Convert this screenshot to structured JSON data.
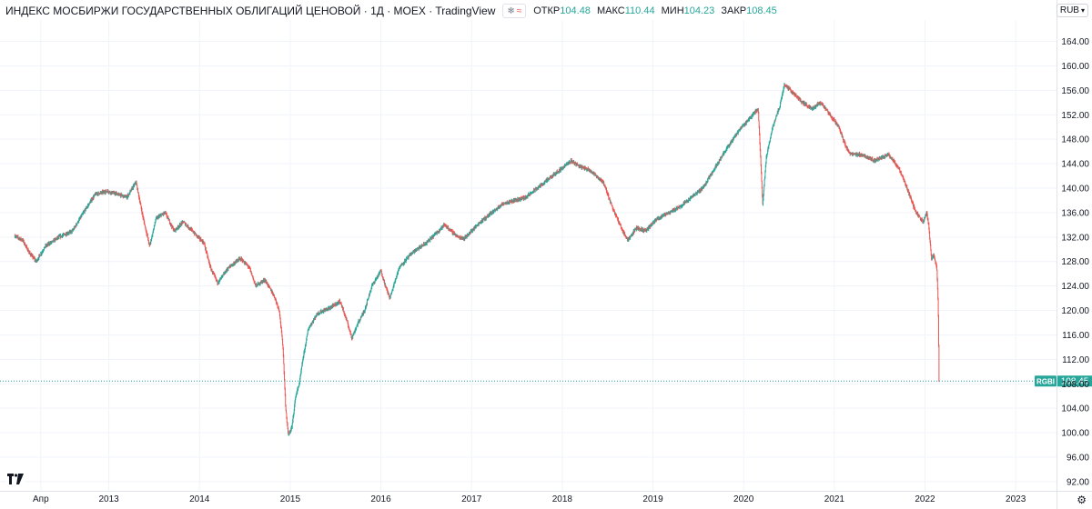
{
  "header": {
    "title": "ИНДЕКС МОСБИРЖИ ГОСУДАРСТВЕННЫХ ОБЛИГАЦИЙ ЦЕНОВОЙ · 1Д · MOEX · TradingView",
    "ohlc": [
      {
        "label": "ОТКР",
        "value": "104.48"
      },
      {
        "label": "МАКС",
        "value": "110.44"
      },
      {
        "label": "МИН",
        "value": "104.23"
      },
      {
        "label": "ЗАКР",
        "value": "108.45"
      }
    ]
  },
  "currency": "RUB",
  "colors": {
    "up": "#26a69a",
    "down": "#ef5350",
    "grid": "#f0f3fa",
    "price_line": "#26a69a"
  },
  "chart_data": {
    "type": "candlestick",
    "symbol": "RGBI",
    "last_price": 108.45,
    "ylim": [
      90.5,
      167.5
    ],
    "y_ticks": [
      "92.00",
      "96.00",
      "100.00",
      "104.00",
      "108.00",
      "112.00",
      "116.00",
      "120.00",
      "124.00",
      "128.00",
      "132.00",
      "136.00",
      "140.00",
      "144.00",
      "148.00",
      "152.00",
      "156.00",
      "160.00",
      "164.00"
    ],
    "x_ticks": [
      {
        "label": "Апр",
        "t": 2012.25
      },
      {
        "label": "2013",
        "t": 2013.0
      },
      {
        "label": "2014",
        "t": 2014.0
      },
      {
        "label": "2015",
        "t": 2015.0
      },
      {
        "label": "2016",
        "t": 2016.0
      },
      {
        "label": "2017",
        "t": 2017.0
      },
      {
        "label": "2018",
        "t": 2018.0
      },
      {
        "label": "2019",
        "t": 2019.0
      },
      {
        "label": "2020",
        "t": 2020.0
      },
      {
        "label": "2021",
        "t": 2021.0
      },
      {
        "label": "2022",
        "t": 2022.0
      },
      {
        "label": "2023",
        "t": 2023.0
      }
    ],
    "xlim": [
      2011.8,
      2023.45
    ],
    "price_path": [
      [
        2011.96,
        132.2
      ],
      [
        2012.05,
        131.5
      ],
      [
        2012.12,
        129.5
      ],
      [
        2012.2,
        128.0
      ],
      [
        2012.3,
        130.5
      ],
      [
        2012.45,
        132.0
      ],
      [
        2012.6,
        133.0
      ],
      [
        2012.72,
        136.0
      ],
      [
        2012.85,
        139.0
      ],
      [
        2012.98,
        139.5
      ],
      [
        2013.1,
        139.0
      ],
      [
        2013.2,
        138.5
      ],
      [
        2013.3,
        141.0
      ],
      [
        2013.38,
        135.0
      ],
      [
        2013.45,
        130.5
      ],
      [
        2013.52,
        135.0
      ],
      [
        2013.62,
        136.0
      ],
      [
        2013.72,
        133.0
      ],
      [
        2013.82,
        134.5
      ],
      [
        2013.92,
        133.0
      ],
      [
        2014.05,
        131.0
      ],
      [
        2014.12,
        127.0
      ],
      [
        2014.2,
        124.5
      ],
      [
        2014.32,
        127.0
      ],
      [
        2014.45,
        128.5
      ],
      [
        2014.55,
        127.0
      ],
      [
        2014.62,
        124.0
      ],
      [
        2014.72,
        125.0
      ],
      [
        2014.82,
        122.5
      ],
      [
        2014.88,
        120.0
      ],
      [
        2014.92,
        114.0
      ],
      [
        2014.95,
        104.0
      ],
      [
        2014.98,
        99.5
      ],
      [
        2015.02,
        101.0
      ],
      [
        2015.06,
        106.0
      ],
      [
        2015.1,
        108.0
      ],
      [
        2015.14,
        112.0
      ],
      [
        2015.2,
        117.0
      ],
      [
        2015.3,
        119.5
      ],
      [
        2015.45,
        120.5
      ],
      [
        2015.55,
        121.5
      ],
      [
        2015.62,
        118.5
      ],
      [
        2015.68,
        115.5
      ],
      [
        2015.75,
        118.0
      ],
      [
        2015.82,
        120.0
      ],
      [
        2015.9,
        124.0
      ],
      [
        2016.0,
        126.5
      ],
      [
        2016.05,
        124.0
      ],
      [
        2016.1,
        122.0
      ],
      [
        2016.2,
        127.0
      ],
      [
        2016.35,
        129.5
      ],
      [
        2016.5,
        131.0
      ],
      [
        2016.7,
        134.0
      ],
      [
        2016.85,
        132.0
      ],
      [
        2016.92,
        131.8
      ],
      [
        2017.1,
        134.5
      ],
      [
        2017.35,
        137.5
      ],
      [
        2017.6,
        138.5
      ],
      [
        2017.85,
        141.5
      ],
      [
        2018.1,
        144.5
      ],
      [
        2018.2,
        143.5
      ],
      [
        2018.3,
        143.0
      ],
      [
        2018.45,
        141.0
      ],
      [
        2018.55,
        137.0
      ],
      [
        2018.65,
        133.5
      ],
      [
        2018.72,
        131.5
      ],
      [
        2018.82,
        133.5
      ],
      [
        2018.92,
        133.0
      ],
      [
        2019.05,
        135.0
      ],
      [
        2019.3,
        137.0
      ],
      [
        2019.55,
        140.0
      ],
      [
        2019.75,
        145.0
      ],
      [
        2019.95,
        149.5
      ],
      [
        2020.1,
        152.0
      ],
      [
        2020.16,
        153.0
      ],
      [
        2020.18,
        147.0
      ],
      [
        2020.21,
        137.5
      ],
      [
        2020.25,
        145.0
      ],
      [
        2020.32,
        150.0
      ],
      [
        2020.4,
        153.5
      ],
      [
        2020.45,
        157.0
      ],
      [
        2020.55,
        155.5
      ],
      [
        2020.65,
        154.0
      ],
      [
        2020.75,
        153.0
      ],
      [
        2020.85,
        154.0
      ],
      [
        2020.95,
        152.0
      ],
      [
        2021.05,
        150.0
      ],
      [
        2021.12,
        147.0
      ],
      [
        2021.18,
        145.5
      ],
      [
        2021.3,
        145.5
      ],
      [
        2021.45,
        144.5
      ],
      [
        2021.6,
        145.5
      ],
      [
        2021.72,
        143.0
      ],
      [
        2021.8,
        140.0
      ],
      [
        2021.9,
        136.0
      ],
      [
        2021.98,
        134.5
      ],
      [
        2022.02,
        136.0
      ],
      [
        2022.04,
        134.0
      ],
      [
        2022.07,
        128.5
      ],
      [
        2022.1,
        129.0
      ],
      [
        2022.13,
        127.0
      ],
      [
        2022.145,
        121.0
      ],
      [
        2022.155,
        108.45
      ]
    ]
  }
}
